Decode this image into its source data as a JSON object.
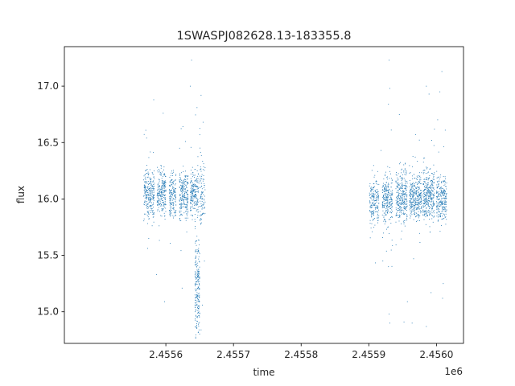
{
  "chart_data": {
    "type": "scatter",
    "title": "1SWASPJ082628.13-183355.8",
    "xlabel": "time",
    "ylabel": "flux",
    "x_offset_label": "1e6",
    "xlim": [
      2.45545,
      2.45604
    ],
    "ylim": [
      14.72,
      17.35
    ],
    "xticks": [
      2.4556,
      2.4557,
      2.4558,
      2.4559,
      2.456
    ],
    "xtick_labels": [
      "2.4556",
      "2.4557",
      "2.4558",
      "2.4559",
      "2.4560"
    ],
    "yticks": [
      15.0,
      15.5,
      16.0,
      16.5,
      17.0
    ],
    "ytick_labels": [
      "15.0",
      "15.5",
      "16.0",
      "16.5",
      "17.0"
    ],
    "grid": false,
    "point_color": "#1f77b4",
    "clusters": [
      {
        "x_start": 2.455567,
        "x_end": 2.455583,
        "center": 16.05,
        "spread": 0.1,
        "n": 260
      },
      {
        "x_start": 2.455587,
        "x_end": 2.4556,
        "center": 16.05,
        "spread": 0.1,
        "n": 230
      },
      {
        "x_start": 2.455605,
        "x_end": 2.455615,
        "center": 16.03,
        "spread": 0.1,
        "n": 160
      },
      {
        "x_start": 2.45562,
        "x_end": 2.455633,
        "center": 16.04,
        "spread": 0.11,
        "n": 230
      },
      {
        "x_start": 2.455636,
        "x_end": 2.455648,
        "center": 16.06,
        "spread": 0.1,
        "n": 200
      },
      {
        "x_start": 2.45565,
        "x_end": 2.455653,
        "center": 16.1,
        "spread": 0.18,
        "n": 50
      },
      {
        "x_start": 2.455643,
        "x_end": 2.45565,
        "center": 15.2,
        "spread": 0.22,
        "n": 220
      },
      {
        "x_start": 2.455653,
        "x_end": 2.455658,
        "center": 16.05,
        "spread": 0.1,
        "n": 50
      },
      {
        "x_start": 2.455901,
        "x_end": 2.455915,
        "center": 15.97,
        "spread": 0.1,
        "n": 180
      },
      {
        "x_start": 2.45592,
        "x_end": 2.455935,
        "center": 16.0,
        "spread": 0.11,
        "n": 250
      },
      {
        "x_start": 2.45594,
        "x_end": 2.455957,
        "center": 16.02,
        "spread": 0.11,
        "n": 300
      },
      {
        "x_start": 2.45596,
        "x_end": 2.455978,
        "center": 16.02,
        "spread": 0.1,
        "n": 330
      },
      {
        "x_start": 2.45598,
        "x_end": 2.455997,
        "center": 16.04,
        "spread": 0.11,
        "n": 330
      },
      {
        "x_start": 2.456,
        "x_end": 2.456015,
        "center": 16.0,
        "spread": 0.1,
        "n": 250
      }
    ],
    "outliers": [
      [
        2.455582,
        16.88
      ],
      [
        2.455596,
        16.76
      ],
      [
        2.455586,
        15.33
      ],
      [
        2.455598,
        15.09
      ],
      [
        2.455629,
        16.51
      ],
      [
        2.455624,
        15.21
      ],
      [
        2.455638,
        17.23
      ],
      [
        2.455636,
        17.0
      ],
      [
        2.455646,
        16.81
      ],
      [
        2.455652,
        16.92
      ],
      [
        2.455655,
        16.68
      ],
      [
        2.455654,
        15.06
      ],
      [
        2.455652,
        14.84
      ],
      [
        2.455657,
        15.45
      ],
      [
        2.45593,
        17.23
      ],
      [
        2.455931,
        16.98
      ],
      [
        2.455929,
        16.84
      ],
      [
        2.45593,
        14.98
      ],
      [
        2.455931,
        14.9
      ],
      [
        2.455929,
        15.4
      ],
      [
        2.455957,
        15.09
      ],
      [
        2.455952,
        14.91
      ],
      [
        2.455964,
        14.9
      ],
      [
        2.455985,
        17.0
      ],
      [
        2.455989,
        16.93
      ],
      [
        2.455985,
        14.87
      ],
      [
        2.456008,
        17.13
      ],
      [
        2.456005,
        16.95
      ],
      [
        2.456009,
        15.12
      ],
      [
        2.45601,
        15.25
      ],
      [
        2.455992,
        15.17
      ],
      [
        2.455969,
        16.57
      ],
      [
        2.455997,
        16.62
      ],
      [
        2.456013,
        16.61
      ],
      [
        2.455905,
        15.71
      ],
      [
        2.455918,
        16.43
      ]
    ]
  }
}
